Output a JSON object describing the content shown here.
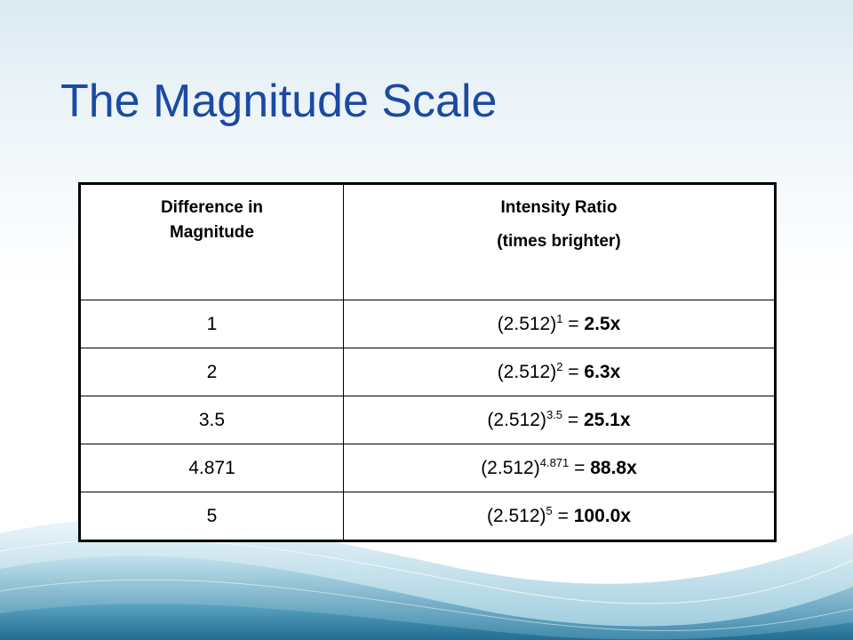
{
  "slide": {
    "title": "The Magnitude Scale"
  },
  "table": {
    "header": {
      "col1_line1": "Difference in",
      "col1_line2": "Magnitude",
      "col2_line1": "Intensity Ratio",
      "col2_line2": "(times brighter)"
    },
    "rows": [
      {
        "diff": "1",
        "base": "(2.512)",
        "exp": "1",
        "eq": " = ",
        "result": "2.5x"
      },
      {
        "diff": "2",
        "base": "(2.512)",
        "exp": "2",
        "eq": " = ",
        "result": "6.3x"
      },
      {
        "diff": "3.5",
        "base": "(2.512)",
        "exp": "3.5",
        "eq": " = ",
        "result": "25.1x"
      },
      {
        "diff": "4.871",
        "base": "(2.512)",
        "exp": "4.871",
        "eq": " = ",
        "result": "88.8x"
      },
      {
        "diff": "5",
        "base": "(2.512)",
        "exp": "5",
        "eq": " = ",
        "result": "100.0x"
      }
    ]
  },
  "colors": {
    "title": "#1b4aa1",
    "wave_dark": "#3f8fb0",
    "wave_light": "#a9d4e3"
  }
}
